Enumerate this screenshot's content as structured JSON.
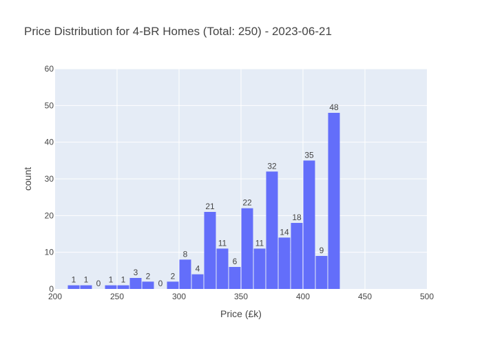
{
  "chart_data": {
    "type": "bar",
    "title": "Price Distribution for 4-BR Homes (Total: 250) - 2023-06-21",
    "xlabel": "Price (£k)",
    "ylabel": "count",
    "xlim": [
      200,
      500
    ],
    "ylim": [
      0,
      60
    ],
    "x_ticks": [
      200,
      250,
      300,
      350,
      400,
      450,
      500
    ],
    "y_ticks": [
      0,
      10,
      20,
      30,
      40,
      50,
      60
    ],
    "bin_width": 10,
    "bin_starts": [
      210,
      220,
      230,
      240,
      250,
      260,
      270,
      280,
      290,
      300,
      310,
      320,
      330,
      340,
      350,
      360,
      370,
      380,
      390,
      400,
      410,
      420
    ],
    "values": [
      1,
      1,
      0,
      1,
      1,
      3,
      2,
      0,
      2,
      8,
      4,
      21,
      11,
      6,
      22,
      11,
      32,
      14,
      18,
      35,
      9,
      48
    ],
    "bar_color": "#636efa",
    "plot_bg": "#e5ecf6",
    "grid": true
  }
}
